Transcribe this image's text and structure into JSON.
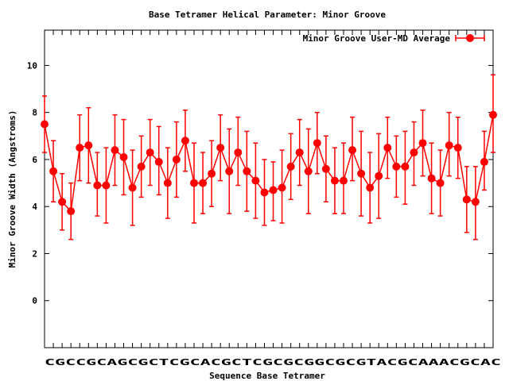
{
  "chart_data": {
    "type": "line",
    "title": "Base Tetramer Helical Parameter: Minor Groove",
    "xlabel": "Sequence Base Tetramer",
    "ylabel": "Minor Groove Width (Angstroms)",
    "ylim": [
      -2,
      11.5
    ],
    "y_ticks": [
      0,
      2,
      4,
      6,
      8,
      10
    ],
    "x_tick_text": "CGCCGCAGCGCTCGCACGCTCGCGCGGCGCGTACGCAAACGCAC",
    "legend_position": "top-right",
    "grid": false,
    "series": [
      {
        "name": "Minor Groove User-MD Average",
        "color": "#ff0000",
        "values": [
          7.5,
          5.5,
          4.2,
          3.8,
          6.5,
          6.6,
          4.9,
          4.9,
          6.4,
          6.1,
          4.8,
          5.7,
          6.3,
          5.9,
          5.0,
          6.0,
          6.8,
          5.0,
          5.0,
          5.4,
          6.5,
          5.5,
          6.3,
          5.5,
          5.1,
          4.6,
          4.7,
          4.8,
          5.7,
          6.3,
          5.5,
          6.7,
          5.6,
          5.1,
          5.1,
          6.4,
          5.4,
          4.8,
          5.3,
          6.5,
          5.7,
          5.7,
          6.3,
          6.7,
          5.2,
          5.0,
          6.6,
          6.5,
          4.3,
          4.2,
          5.9,
          7.9
        ],
        "error_low": [
          6.3,
          4.2,
          3.0,
          2.6,
          5.1,
          5.0,
          3.6,
          3.3,
          4.9,
          4.5,
          3.2,
          4.4,
          4.9,
          4.5,
          3.5,
          4.4,
          5.5,
          3.3,
          3.7,
          4.0,
          5.1,
          3.7,
          4.9,
          3.8,
          3.5,
          3.2,
          3.4,
          3.3,
          4.3,
          4.9,
          3.7,
          5.4,
          4.2,
          3.7,
          3.7,
          5.1,
          3.6,
          3.3,
          3.5,
          5.2,
          4.4,
          4.1,
          4.9,
          5.3,
          3.7,
          3.6,
          5.3,
          5.2,
          2.9,
          2.6,
          4.7,
          6.3
        ],
        "error_high": [
          8.7,
          6.8,
          5.4,
          5.0,
          7.9,
          8.2,
          6.3,
          6.5,
          7.9,
          7.7,
          6.4,
          7.0,
          7.7,
          7.4,
          6.5,
          7.6,
          8.1,
          6.7,
          6.3,
          6.8,
          7.9,
          7.3,
          7.8,
          7.2,
          6.7,
          6.0,
          5.9,
          6.4,
          7.1,
          7.7,
          7.3,
          8.0,
          7.0,
          6.5,
          6.7,
          7.8,
          7.2,
          6.3,
          7.1,
          7.8,
          7.0,
          7.2,
          7.6,
          8.1,
          6.7,
          6.4,
          8.0,
          7.8,
          5.7,
          5.7,
          7.2,
          9.6
        ]
      }
    ]
  }
}
